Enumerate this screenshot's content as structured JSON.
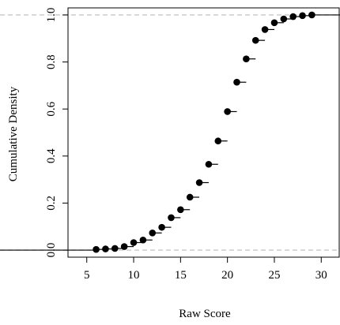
{
  "chart_data": {
    "type": "scatter",
    "subtype": "empirical-cdf-step",
    "xlabel": "Raw Score",
    "ylabel": "Cumulative Density",
    "xlim": [
      3,
      32
    ],
    "ylim": [
      -0.03,
      1.03
    ],
    "x_ticks": [
      5,
      10,
      15,
      20,
      25,
      30
    ],
    "y_ticks": [
      0.0,
      0.2,
      0.4,
      0.6,
      0.8,
      1.0
    ],
    "x_tick_labels": [
      "5",
      "10",
      "15",
      "20",
      "25",
      "30"
    ],
    "y_tick_labels": [
      "0.0",
      "0.2",
      "0.4",
      "0.6",
      "0.8",
      "1.0"
    ],
    "reference_lines": [
      0,
      1
    ],
    "grid": false,
    "legend": "none",
    "x": [
      6,
      7,
      8,
      9,
      10,
      11,
      12,
      13,
      14,
      15,
      16,
      17,
      18,
      19,
      20,
      21,
      22,
      23,
      24,
      25,
      26,
      27,
      28,
      29
    ],
    "y": [
      0.003,
      0.005,
      0.007,
      0.015,
      0.032,
      0.043,
      0.073,
      0.097,
      0.138,
      0.172,
      0.225,
      0.287,
      0.365,
      0.464,
      0.589,
      0.714,
      0.813,
      0.892,
      0.938,
      0.967,
      0.983,
      0.993,
      0.997,
      1.0
    ],
    "colors": {
      "points": "#000000",
      "reference": "#c8c8c8"
    }
  }
}
